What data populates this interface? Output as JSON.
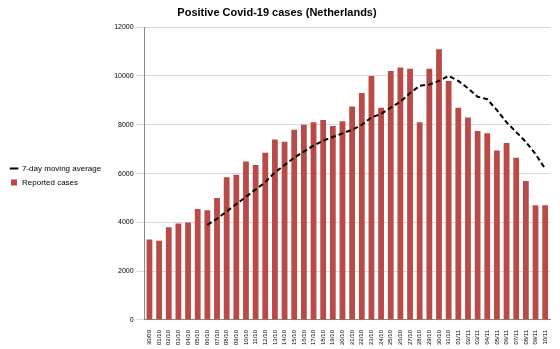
{
  "chart_data": {
    "type": "bar",
    "title": "Positive Covid-19 cases (Netherlands)",
    "categories": [
      "30/09",
      "01/10",
      "02/10",
      "03/10",
      "04/10",
      "05/10",
      "06/10",
      "07/10",
      "08/10",
      "09/10",
      "10/10",
      "11/10",
      "12/10",
      "13/10",
      "14/10",
      "15/10",
      "16/10",
      "17/10",
      "18/10",
      "19/10",
      "20/10",
      "21/10",
      "22/10",
      "23/10",
      "24/10",
      "25/10",
      "26/10",
      "27/10",
      "28/10",
      "29/10",
      "30/10",
      "31/10",
      "01/11",
      "02/11",
      "03/11",
      "04/11",
      "05/11",
      "06/11",
      "07/11",
      "08/11",
      "09/11",
      "10/11"
    ],
    "series": [
      {
        "name": "Reported cases",
        "type": "bar",
        "color": "#b94a48",
        "values": [
          3300,
          3250,
          3800,
          3950,
          4000,
          4550,
          4500,
          5000,
          5850,
          5950,
          6500,
          6350,
          6850,
          7400,
          7300,
          7800,
          8000,
          8100,
          8200,
          7950,
          8150,
          8750,
          9300,
          10000,
          8700,
          10200,
          10350,
          10300,
          8100,
          10300,
          11100,
          9800,
          8700,
          8300,
          7750,
          7650,
          6950,
          7250,
          6650,
          5700,
          4700,
          4700
        ]
      },
      {
        "name": "7-day moving average",
        "type": "line",
        "color": "#000000",
        "line_style": "dashed",
        "values": [
          null,
          null,
          null,
          null,
          null,
          null,
          3900,
          4150,
          4450,
          4750,
          5050,
          5350,
          5650,
          6050,
          6350,
          6650,
          6900,
          7150,
          7350,
          7500,
          7650,
          7800,
          8000,
          8300,
          8450,
          8700,
          8950,
          9300,
          9600,
          9650,
          9800,
          10000,
          9800,
          9500,
          9150,
          9050,
          8600,
          8100,
          7700,
          7300,
          6800,
          6200
        ]
      }
    ],
    "ylim": [
      0,
      12000
    ],
    "yticks": [
      0,
      2000,
      4000,
      6000,
      8000,
      10000,
      12000
    ],
    "grid": true,
    "legend": "left"
  }
}
